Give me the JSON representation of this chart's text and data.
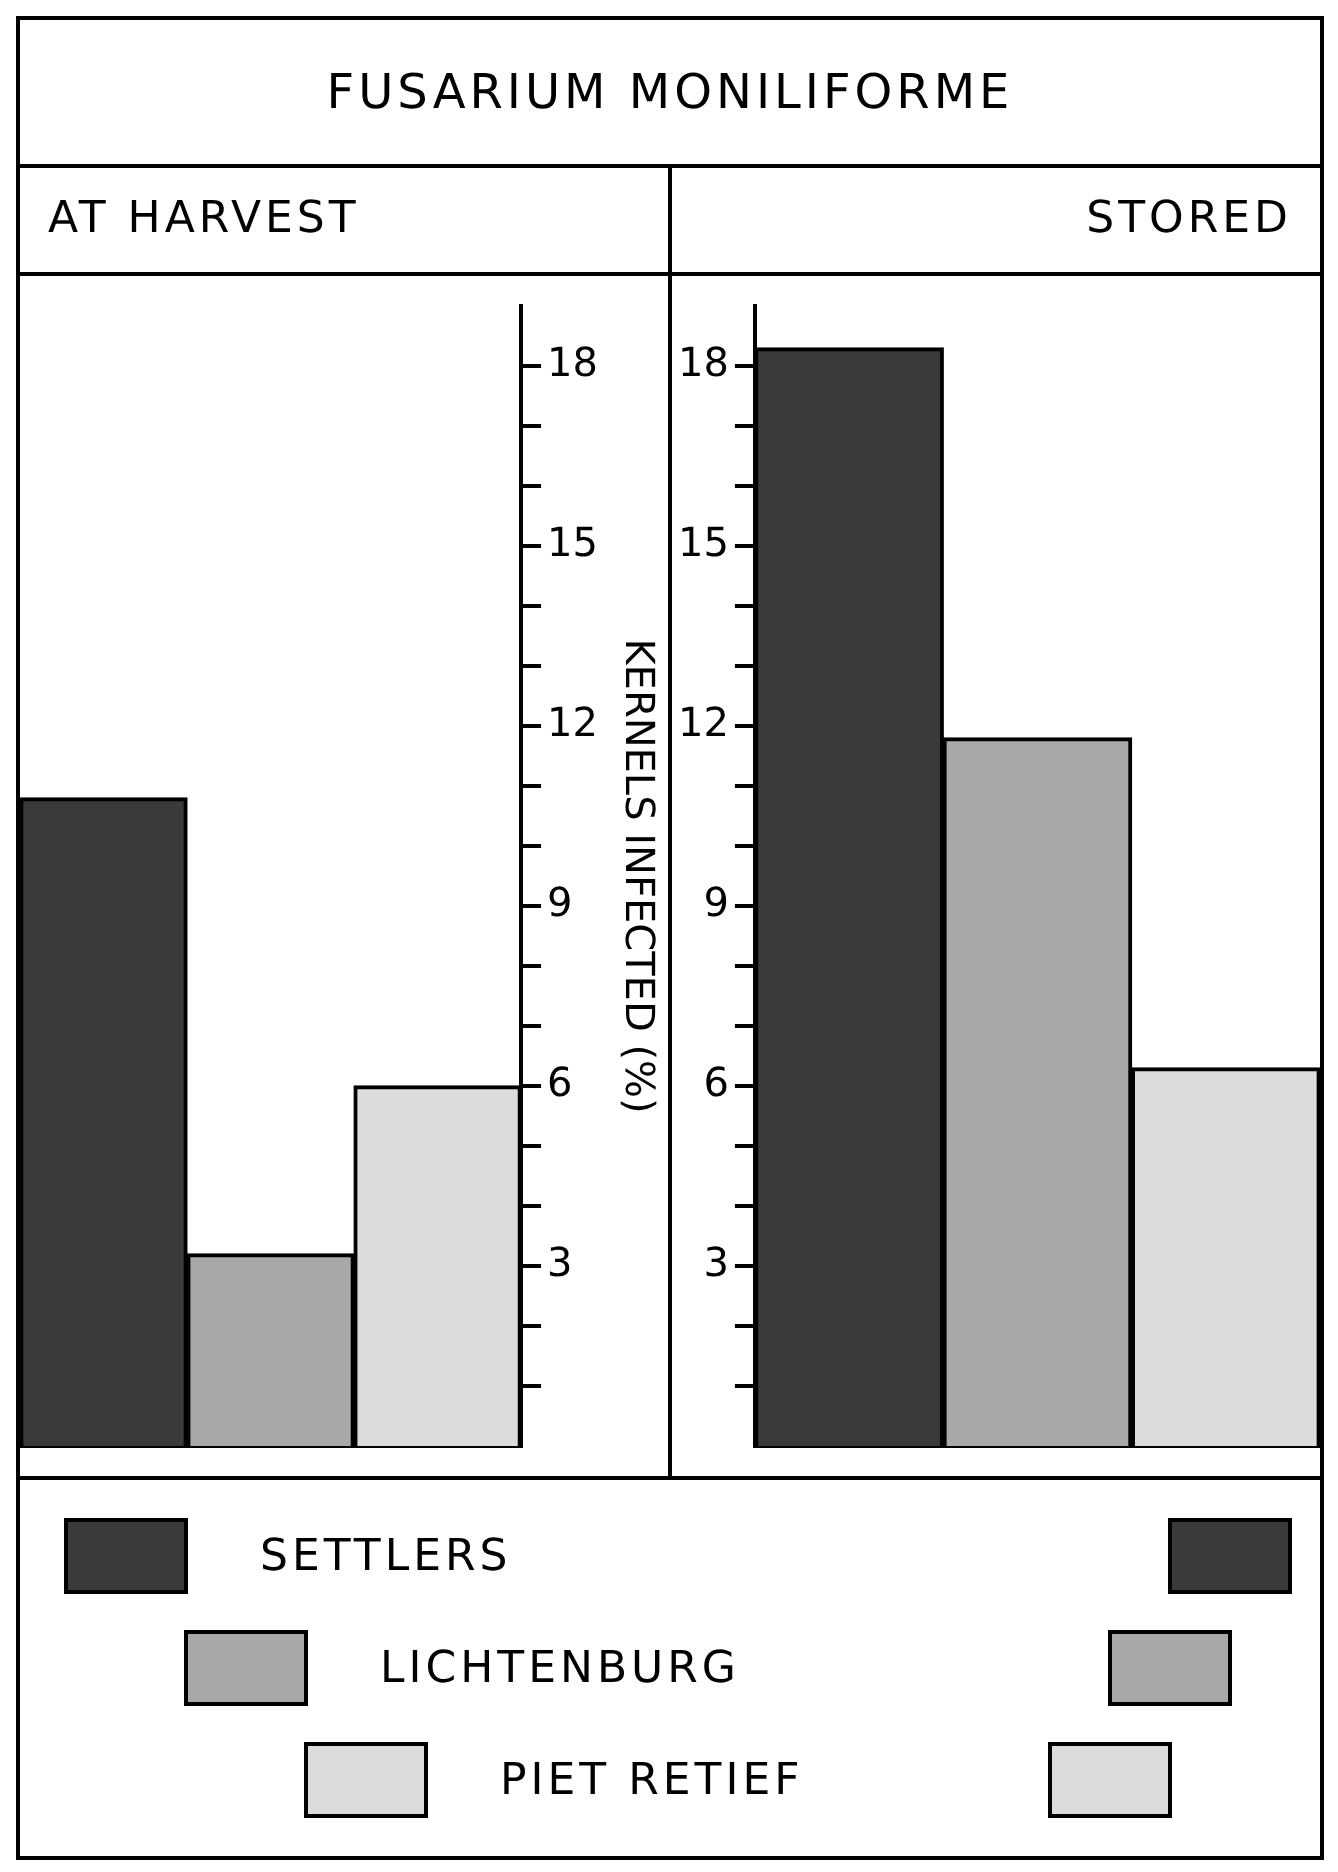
{
  "chart_data": [
    {
      "type": "bar",
      "title": "FUSARIUM MONILIFORME",
      "subtitle": "AT HARVEST",
      "ylabel": "KERNELS INFECTED (%)",
      "categories": [
        null
      ],
      "series": [
        {
          "name": "SETTLERS",
          "color": "#3a3a3a",
          "values": [
            10.8
          ]
        },
        {
          "name": "LICHTENBURG",
          "color": "#a8a8a8",
          "values": [
            3.2
          ]
        },
        {
          "name": "PIET RETIEF",
          "color": "#dcdcdc",
          "values": [
            6.0
          ]
        }
      ],
      "ylim": [
        0,
        19
      ],
      "yticks": [
        {
          "value": 1,
          "label": null
        },
        {
          "value": 2,
          "label": null
        },
        3,
        {
          "value": 4,
          "label": null
        },
        {
          "value": 5,
          "label": null
        },
        6,
        {
          "value": 7,
          "label": null
        },
        {
          "value": 8,
          "label": null
        },
        9,
        {
          "value": 10,
          "label": null
        },
        {
          "value": 11,
          "label": null
        },
        12,
        {
          "value": 13,
          "label": null
        },
        {
          "value": 14,
          "label": null
        },
        15,
        {
          "value": 16,
          "label": null
        },
        {
          "value": 17,
          "label": null
        },
        18
      ],
      "legend": "bottom"
    },
    {
      "type": "bar",
      "subtitle": "STORED",
      "categories": [
        null
      ],
      "series": [
        {
          "color": "#3a3a3a",
          "values": [
            18.3
          ]
        },
        {
          "color": "#a8a8a8",
          "values": [
            11.8
          ]
        },
        {
          "color": "#dcdcdc",
          "values": [
            6.3
          ]
        }
      ],
      "ylim": [
        0,
        19
      ],
      "yticks": [
        {
          "value": 1,
          "label": null
        },
        {
          "value": 2,
          "label": null
        },
        3,
        {
          "value": 4,
          "label": null
        },
        {
          "value": 5,
          "label": null
        },
        6,
        {
          "value": 7,
          "label": null
        },
        {
          "value": 8,
          "label": null
        },
        9,
        {
          "value": 10,
          "label": null
        },
        {
          "value": 11,
          "label": null
        },
        12,
        {
          "value": 13,
          "label": null
        },
        {
          "value": 14,
          "label": null
        },
        15,
        {
          "value": 16,
          "label": null
        },
        {
          "value": 17,
          "label": null
        },
        18
      ]
    }
  ]
}
